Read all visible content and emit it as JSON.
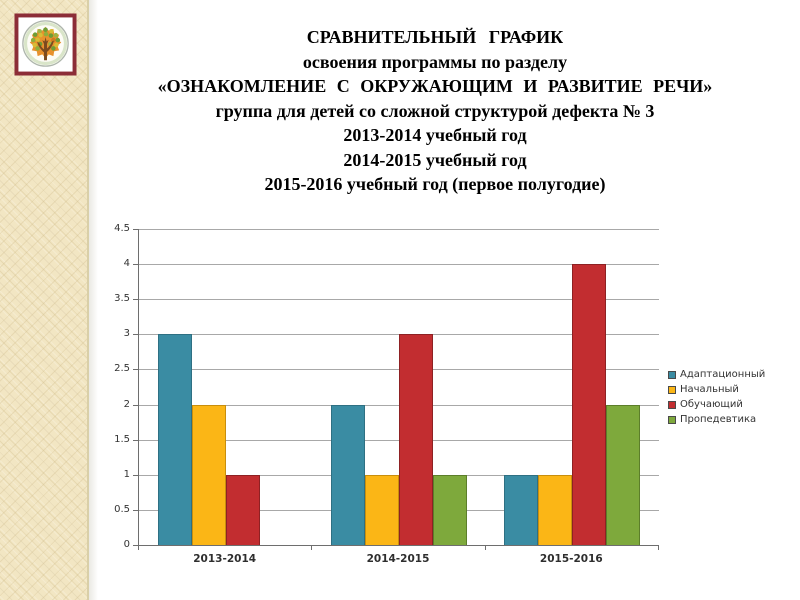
{
  "slide": {
    "title_lines": [
      "СРАВНИТЕЛЬНЫЙ  ГРАФИК",
      "освоения программы по разделу",
      "«ОЗНАКОМЛЕНИЕ  С  ОКРУЖАЮЩИМ  И  РАЗВИТИЕ  РЕЧИ»",
      "группа для детей со сложной структурой дефекта № 3",
      "2013-2014 учебный год",
      "2014-2015 учебный год",
      "2015-2016 учебный год (первое полугодие)"
    ]
  },
  "logo": {
    "icon": "tree-emblem-icon",
    "frame_color": "#8C2D37",
    "star_color": "#E8912D",
    "trunk_color": "#7A4A1F"
  },
  "chart_data": {
    "type": "bar",
    "title": "",
    "categories": [
      "2013-2014",
      "2014-2015",
      "2015-2016"
    ],
    "series": [
      {
        "name": "Адаптационный",
        "color": "#3A8CA3",
        "border": "#2E7083",
        "values": [
          3,
          2,
          1
        ]
      },
      {
        "name": "Начальный",
        "color": "#FBB616",
        "border": "#C88E0D",
        "values": [
          2,
          1,
          1
        ]
      },
      {
        "name": "Обучающий",
        "color": "#C22D30",
        "border": "#8E2123",
        "values": [
          1,
          3,
          4
        ]
      },
      {
        "name": "Пропедевтика",
        "color": "#7EA93C",
        "border": "#5C7E2A",
        "values": [
          0,
          1,
          2
        ]
      }
    ],
    "xlabel": "",
    "ylabel": "",
    "ylim": [
      0,
      4.5
    ],
    "ytick_step": 0.5,
    "ytick_labels": [
      "0",
      "0.5",
      "1",
      "1.5",
      "2",
      "2.5",
      "3",
      "3.5",
      "4",
      "4.5"
    ],
    "grid": true,
    "legend_position": "right",
    "gridline_color": "#A8A8A8",
    "axis_color": "#6E6E6E"
  }
}
